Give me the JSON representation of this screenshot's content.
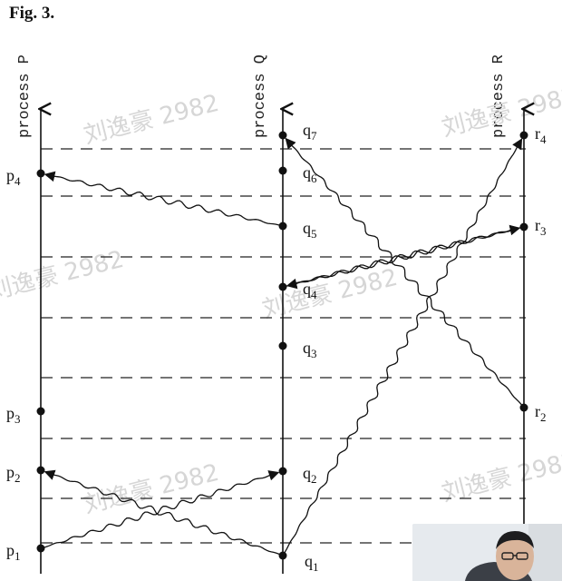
{
  "figure": {
    "title": "Fig. 3."
  },
  "processes": [
    {
      "id": "P",
      "label": "process P"
    },
    {
      "id": "Q",
      "label": "process Q"
    },
    {
      "id": "R",
      "label": "process R"
    }
  ],
  "events": {
    "P": [
      "p1",
      "p2",
      "p3",
      "p4"
    ],
    "Q": [
      "q1",
      "q2",
      "q3",
      "q4",
      "q5",
      "q6",
      "q7"
    ],
    "R": [
      "r2",
      "r3",
      "r4"
    ]
  },
  "messages": [
    {
      "from": "p1",
      "to": "q2"
    },
    {
      "from": "q1",
      "to": "p2"
    },
    {
      "from": "q1",
      "to": "r4"
    },
    {
      "from": "q4",
      "to": "r3"
    },
    {
      "from": "q5",
      "to": "p4"
    },
    {
      "from": "r2",
      "to": "q7"
    },
    {
      "from": "r3",
      "to": "q4"
    }
  ],
  "watermark": {
    "text": "刘逸豪 2982"
  },
  "colors": {
    "ink": "#111111",
    "dashes": "#222222",
    "watermark": "#d6d6d6"
  }
}
